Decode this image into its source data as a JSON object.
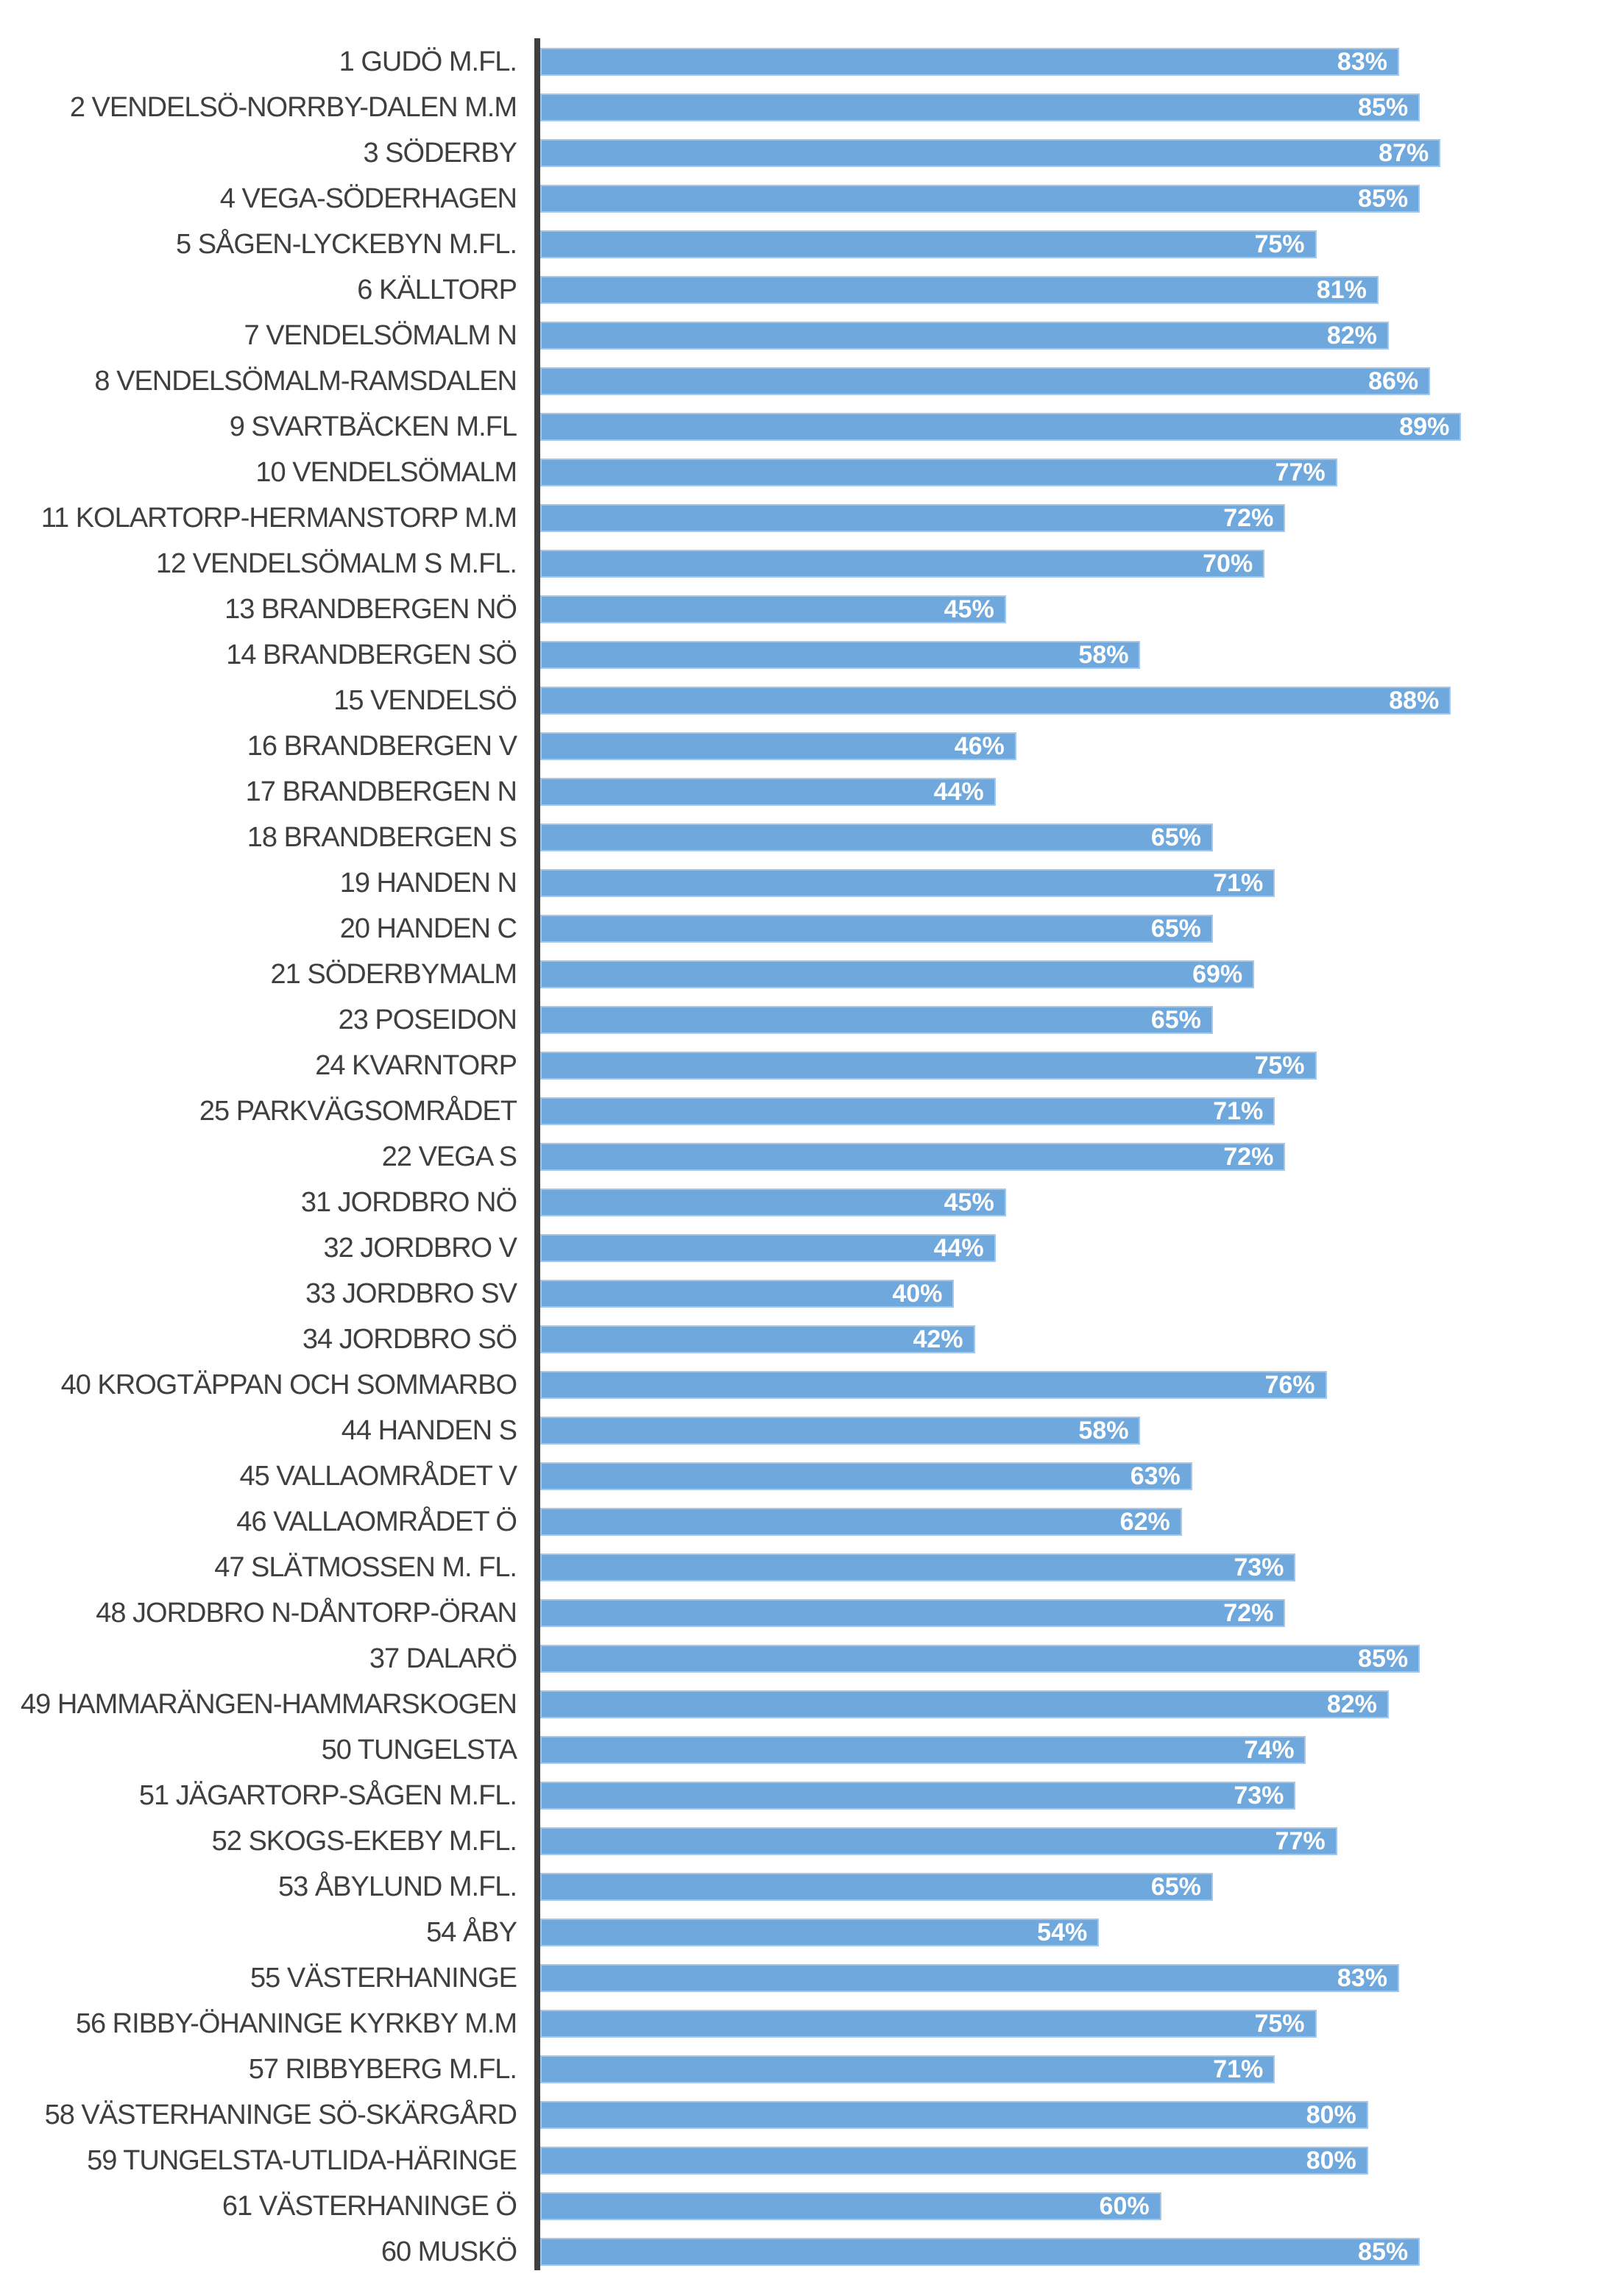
{
  "chart_data": {
    "type": "bar",
    "orientation": "horizontal",
    "title": "",
    "xlabel": "",
    "ylabel": "",
    "xlim": [
      0,
      100
    ],
    "grid": false,
    "legend": false,
    "value_suffix": "%",
    "bar_color": "#6fa8dc",
    "bar_border_color": "#a5c7e9",
    "axis_color": "#3f3f3f",
    "category_label_color": "#3f3f3f",
    "value_label_color": "#ffffff",
    "categories": [
      "1 GUDÖ M.FL.",
      "2 VENDELSÖ-NORRBY-DALEN  M.M",
      "3 SÖDERBY",
      "4 VEGA-SÖDERHAGEN",
      "5 SÅGEN-LYCKEBYN  M.FL.",
      "6 KÄLLTORP",
      "7 VENDELSÖMALM  N",
      "8 VENDELSÖMALM-RAMSDALEN",
      "9 SVARTBÄCKEN  M.FL",
      "10 VENDELSÖMALM",
      "11 KOLARTORP-HERMANSTORP  M.M",
      "12 VENDELSÖMALM  S M.FL.",
      "13 BRANDBERGEN  NÖ",
      "14 BRANDBERGEN  SÖ",
      "15 VENDELSÖ",
      "16 BRANDBERGEN  V",
      "17 BRANDBERGEN  N",
      "18 BRANDBERGEN  S",
      "19 HANDEN N",
      "20 HANDEN C",
      "21 SÖDERBYMALM",
      "23 POSEIDON",
      "24 KVARNTORP",
      "25 PARKVÄGSOMRÅDET",
      "22 VEGA S",
      "31 JORDBRO NÖ",
      "32 JORDBRO V",
      "33 JORDBRO SV",
      "34 JORDBRO SÖ",
      "40 KROGTÄPPAN OCH SOMMARBO",
      "44 HANDEN S",
      "45 VALLAOMRÅDET V",
      "46 VALLAOMRÅDET Ö",
      "47 SLÄTMOSSEN M. FL.",
      "48 JORDBRO N-DÅNTORP-ÖRAN",
      "37 DALARÖ",
      "49 HAMMARÄNGEN-HAMMARSKOGEN",
      "50 TUNGELSTA",
      "51 JÄGARTORP-SÅGEN M.FL.",
      "52 SKOGS-EKEBY M.FL.",
      "53 ÅBYLUND M.FL.",
      "54 ÅBY",
      "55 VÄSTERHANINGE",
      "56 RIBBY-ÖHANINGE KYRKBY M.M",
      "57 RIBBYBERG M.FL.",
      "58 VÄSTERHANINGE SÖ-SKÄRGÅRD",
      "59 TUNGELSTA-UTLIDA-HÄRINGE",
      "61 VÄSTERHANINGE Ö",
      "60 MUSKÖ"
    ],
    "values": [
      83,
      85,
      87,
      85,
      75,
      81,
      82,
      86,
      89,
      77,
      72,
      70,
      45,
      58,
      88,
      46,
      44,
      65,
      71,
      65,
      69,
      65,
      75,
      71,
      72,
      45,
      44,
      40,
      42,
      76,
      58,
      63,
      62,
      73,
      72,
      85,
      82,
      74,
      73,
      77,
      65,
      54,
      83,
      75,
      71,
      80,
      80,
      60,
      85
    ]
  }
}
